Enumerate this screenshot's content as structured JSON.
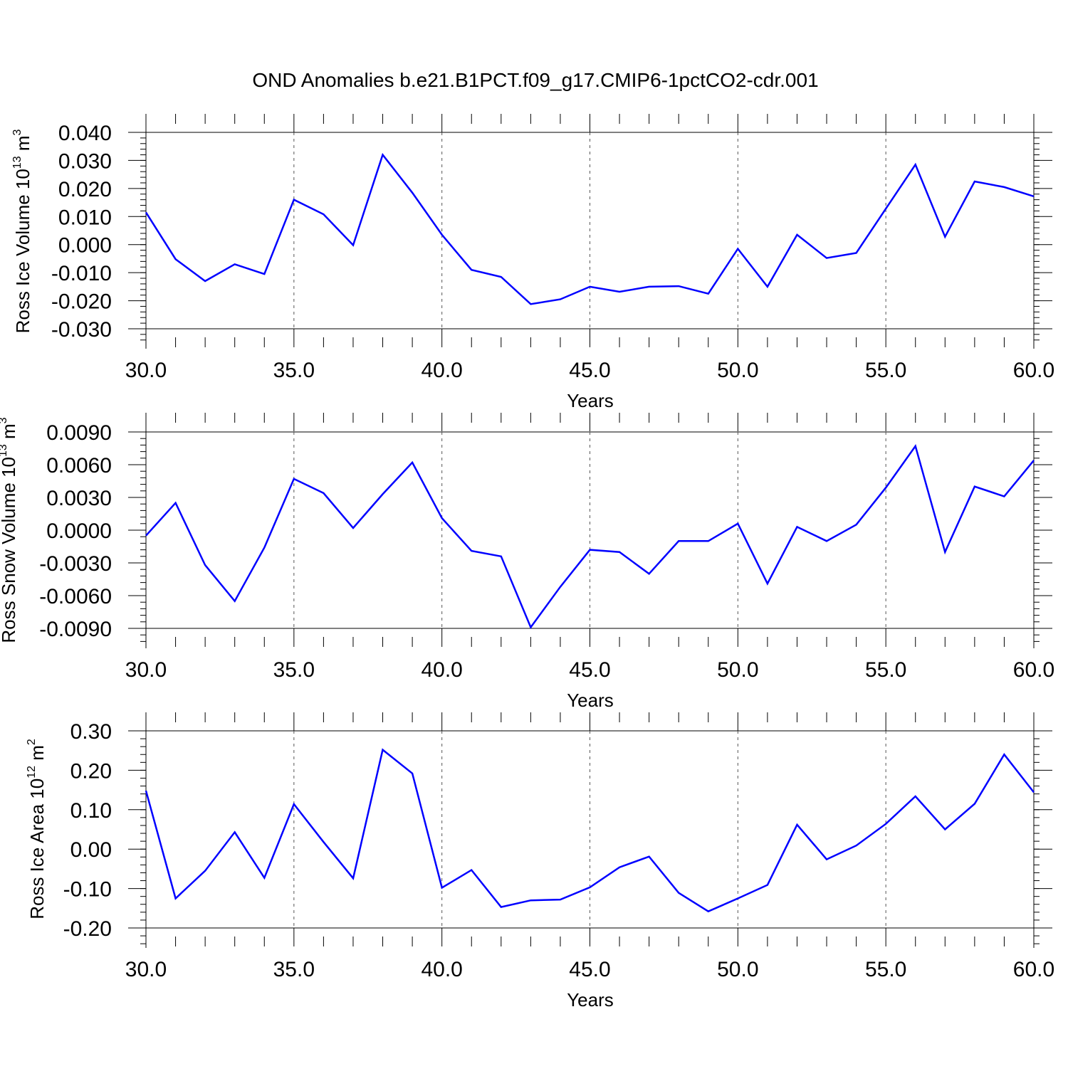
{
  "title": "OND Anomalies b.e21.B1PCT.f09_g17.CMIP6-1pctCO2-cdr.001",
  "colors": {
    "line": "#0000ff",
    "axis": "#000000",
    "grid": "#555555",
    "background": "#ffffff"
  },
  "chart_data": [
    {
      "type": "line",
      "id": "ice-volume",
      "ylabel_main": "Ross Ice Volume 10",
      "ylabel_exp": "13",
      "ylabel_unit": "m",
      "ylabel_unit_exp": "3",
      "xlabel": "Years",
      "xlim": [
        30,
        60
      ],
      "ylim": [
        -0.035,
        0.04
      ],
      "xticks": [
        30,
        35,
        40,
        45,
        50,
        55,
        60
      ],
      "xtick_labels": [
        "30.0",
        "35.0",
        "40.0",
        "45.0",
        "50.0",
        "55.0",
        "60.0"
      ],
      "yticks": [
        -0.03,
        -0.02,
        -0.01,
        0.0,
        0.01,
        0.02,
        0.03,
        0.04
      ],
      "ytick_labels": [
        "-0.030",
        "-0.020",
        "-0.010",
        "0.000",
        "0.010",
        "0.020",
        "0.030",
        "0.040"
      ],
      "grid_x": [
        35,
        40,
        45,
        50,
        55
      ],
      "x": [
        30,
        31,
        32,
        33,
        34,
        35,
        36,
        37,
        38,
        39,
        40,
        41,
        42,
        43,
        44,
        45,
        46,
        47,
        48,
        49,
        50,
        51,
        52,
        53,
        54,
        55,
        56,
        57,
        58,
        59,
        60
      ],
      "values": [
        0.0115,
        -0.0052,
        -0.013,
        -0.007,
        -0.0105,
        0.016,
        0.0108,
        -0.0002,
        0.032,
        0.0185,
        0.0035,
        -0.009,
        -0.0115,
        -0.0212,
        -0.0195,
        -0.015,
        -0.0168,
        -0.015,
        -0.0148,
        -0.0175,
        -0.0015,
        -0.015,
        0.0035,
        -0.0048,
        -0.003,
        0.0128,
        0.0285,
        0.0028,
        0.0225,
        0.0205,
        0.0172
      ]
    },
    {
      "type": "line",
      "id": "snow-volume",
      "ylabel_main": "Ross Snow Volume 10",
      "ylabel_exp": "13",
      "ylabel_unit": "m",
      "ylabel_unit_exp": "3",
      "xlabel": "Years",
      "xlim": [
        30,
        60
      ],
      "ylim": [
        -0.009,
        0.009
      ],
      "xticks": [
        30,
        35,
        40,
        45,
        50,
        55,
        60
      ],
      "xtick_labels": [
        "30.0",
        "35.0",
        "40.0",
        "45.0",
        "50.0",
        "55.0",
        "60.0"
      ],
      "yticks": [
        -0.009,
        -0.006,
        -0.003,
        0.0,
        0.003,
        0.006,
        0.009
      ],
      "ytick_labels": [
        "-0.0090",
        "-0.0060",
        "-0.0030",
        "0.0000",
        "0.0030",
        "0.0060",
        "0.0090"
      ],
      "grid_x": [
        35,
        40,
        45,
        50,
        55
      ],
      "x": [
        30,
        31,
        32,
        33,
        34,
        35,
        36,
        37,
        38,
        39,
        40,
        41,
        42,
        43,
        44,
        45,
        46,
        47,
        48,
        49,
        50,
        51,
        52,
        53,
        54,
        55,
        56,
        57,
        58,
        59,
        60
      ],
      "values": [
        -0.0005,
        0.0025,
        -0.0032,
        -0.0065,
        -0.0016,
        0.0047,
        0.0034,
        0.0002,
        0.0033,
        0.0062,
        0.0011,
        -0.0019,
        -0.0024,
        -0.0089,
        -0.0052,
        -0.0018,
        -0.002,
        -0.004,
        -0.001,
        -0.001,
        0.0006,
        -0.0049,
        0.0003,
        -0.001,
        0.0005,
        0.0039,
        0.0077,
        -0.002,
        0.004,
        0.0031,
        0.0064
      ]
    },
    {
      "type": "line",
      "id": "ice-area",
      "ylabel_main": "Ross Ice Area 10",
      "ylabel_exp": "12",
      "ylabel_unit": "m",
      "ylabel_unit_exp": "2",
      "xlabel": "Years",
      "xlim": [
        30,
        60
      ],
      "ylim": [
        -0.2,
        0.3
      ],
      "xticks": [
        30,
        35,
        40,
        45,
        50,
        55,
        60
      ],
      "xtick_labels": [
        "30.0",
        "35.0",
        "40.0",
        "45.0",
        "50.0",
        "55.0",
        "60.0"
      ],
      "yticks": [
        -0.2,
        -0.1,
        0.0,
        0.1,
        0.2,
        0.3
      ],
      "ytick_labels": [
        "-0.20",
        "-0.10",
        "0.00",
        "0.10",
        "0.20",
        "0.30"
      ],
      "grid_x": [
        35,
        40,
        45,
        50,
        55
      ],
      "x": [
        30,
        31,
        32,
        33,
        34,
        35,
        36,
        37,
        38,
        39,
        40,
        41,
        42,
        43,
        44,
        45,
        46,
        47,
        48,
        49,
        50,
        51,
        52,
        53,
        54,
        55,
        56,
        57,
        58,
        59,
        60
      ],
      "values": [
        0.148,
        -0.125,
        -0.055,
        0.043,
        -0.073,
        0.114,
        0.018,
        -0.074,
        0.252,
        0.192,
        -0.098,
        -0.053,
        -0.147,
        -0.13,
        -0.128,
        -0.097,
        -0.046,
        -0.019,
        -0.111,
        -0.158,
        -0.125,
        -0.091,
        0.062,
        -0.026,
        0.009,
        0.064,
        0.134,
        0.05,
        0.115,
        0.24,
        0.144
      ]
    }
  ]
}
